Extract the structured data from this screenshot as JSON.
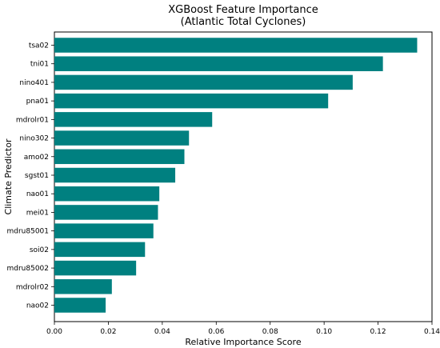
{
  "chart_data": {
    "type": "bar",
    "orientation": "horizontal",
    "title": "XGBoost Feature Importance",
    "subtitle": "(Atlantic Total Cyclones)",
    "xlabel": "Relative Importance Score",
    "ylabel": "Climate Predictor",
    "xlim": [
      0,
      0.14
    ],
    "xticks": [
      0.0,
      0.02,
      0.04,
      0.06,
      0.08,
      0.1,
      0.12,
      0.14
    ],
    "xtick_labels": [
      "0.00",
      "0.02",
      "0.04",
      "0.06",
      "0.08",
      "0.10",
      "0.12",
      "0.14"
    ],
    "bar_color": "#008080",
    "grid": false,
    "categories": [
      "tsa02",
      "tni01",
      "nino401",
      "pna01",
      "mdrolr01",
      "nino302",
      "amo02",
      "sgst01",
      "nao01",
      "mei01",
      "mdru85001",
      "soi02",
      "mdru85002",
      "mdrolr02",
      "nao02"
    ],
    "values": [
      0.1345,
      0.1218,
      0.1106,
      0.1015,
      0.0585,
      0.0499,
      0.0482,
      0.0448,
      0.0389,
      0.0384,
      0.0367,
      0.0336,
      0.0303,
      0.0213,
      0.019
    ]
  }
}
